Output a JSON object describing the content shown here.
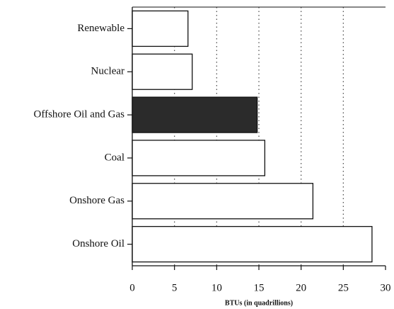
{
  "chart_data": {
    "type": "bar",
    "orientation": "horizontal",
    "categories": [
      "Renewable",
      "Nuclear",
      "Offshore Oil and Gas",
      "Coal",
      "Onshore Gas",
      "Onshore Oil"
    ],
    "values": [
      6.6,
      7.1,
      14.8,
      15.7,
      21.4,
      28.4
    ],
    "colors": [
      "#ffffff",
      "#ffffff",
      "#2b2b2b",
      "#ffffff",
      "#ffffff",
      "#ffffff"
    ],
    "x_label": "BTUs (in quadrillions)",
    "xlim": [
      0,
      30
    ],
    "xticks": [
      0,
      5,
      10,
      15,
      20,
      25,
      30
    ],
    "grid": true
  }
}
